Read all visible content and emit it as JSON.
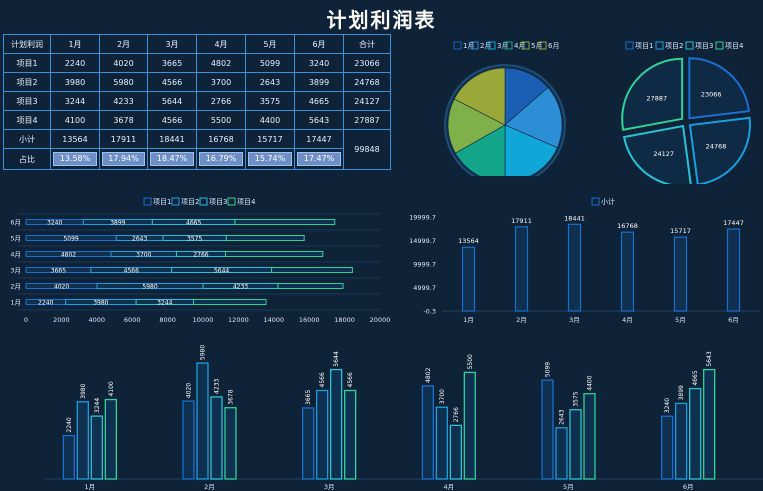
{
  "title": "计划利润表",
  "table": {
    "headers": [
      "计划利润",
      "1月",
      "2月",
      "3月",
      "4月",
      "5月",
      "6月",
      "合计"
    ],
    "rows": [
      {
        "label": "项目1",
        "values": [
          2240,
          4020,
          3665,
          4802,
          5099,
          3240
        ],
        "total": 23066
      },
      {
        "label": "项目2",
        "values": [
          3980,
          5980,
          4566,
          3700,
          2643,
          3899
        ],
        "total": 24768
      },
      {
        "label": "项目3",
        "values": [
          3244,
          4233,
          5644,
          2766,
          3575,
          4665
        ],
        "total": 24127
      },
      {
        "label": "项目4",
        "values": [
          4100,
          3678,
          4566,
          5500,
          4400,
          5643
        ],
        "total": 27887
      }
    ],
    "subtotal_label": "小计",
    "subtotal": [
      13564,
      17911,
      18441,
      16768,
      15717,
      17447
    ],
    "ratio_label": "占比",
    "ratio": [
      "13.58%",
      "17.94%",
      "18.47%",
      "16.79%",
      "15.74%",
      "17.47%"
    ],
    "grand_total": 99848
  },
  "colors": {
    "background": "#0e2238",
    "months": [
      "#1a5fb4",
      "#2c8fd6",
      "#10a7d8",
      "#12a58a",
      "#7fb04a",
      "#9aa83a"
    ],
    "projects": [
      "#1a6fd0",
      "#18a0e0",
      "#27c4d8",
      "#2fd29a"
    ]
  },
  "chart_data": [
    {
      "type": "pie",
      "legend": [
        "1月",
        "2月",
        "3月",
        "4月",
        "5月",
        "6月"
      ],
      "values": [
        13564,
        17911,
        18441,
        16768,
        15717,
        17447
      ],
      "legend_position": "top"
    },
    {
      "type": "pie",
      "legend": [
        "项目1",
        "项目2",
        "项目3",
        "项目4"
      ],
      "values": [
        23066,
        24768,
        24127,
        27887
      ],
      "labels": [
        "23066",
        "24768",
        "24127",
        "27887"
      ],
      "legend_position": "top"
    },
    {
      "type": "bar",
      "orientation": "horizontal",
      "stacked": true,
      "categories": [
        "1月",
        "2月",
        "3月",
        "4月",
        "5月",
        "6月"
      ],
      "series": [
        {
          "name": "项目1",
          "values": [
            2240,
            4020,
            3665,
            4802,
            5099,
            3240
          ]
        },
        {
          "name": "项目2",
          "values": [
            3980,
            5980,
            4566,
            3700,
            2643,
            3899
          ]
        },
        {
          "name": "项目3",
          "values": [
            3244,
            4233,
            5644,
            2766,
            3575,
            4665
          ]
        },
        {
          "name": "项目4",
          "values": [
            4100,
            3678,
            4566,
            5500,
            4400,
            5643
          ]
        }
      ],
      "xlim": [
        0,
        20000
      ],
      "xticks": [
        "0",
        "2000",
        "4000",
        "6000",
        "8000",
        "10000",
        "12000",
        "14000",
        "16000",
        "18000",
        "20000"
      ],
      "legend_position": "top"
    },
    {
      "type": "bar",
      "categories": [
        "1月",
        "2月",
        "3月",
        "4月",
        "5月",
        "6月"
      ],
      "series": [
        {
          "name": "小计",
          "values": [
            13564,
            17911,
            18441,
            16768,
            15717,
            17447
          ]
        }
      ],
      "ylim": [
        -0.3,
        19999.7
      ],
      "yticks": [
        "19999.7",
        "14999.7",
        "9999.7",
        "4999.7",
        "-0.3"
      ],
      "legend_position": "top"
    },
    {
      "type": "bar",
      "categories": [
        "1月",
        "2月",
        "3月",
        "4月",
        "5月",
        "6月"
      ],
      "series": [
        {
          "name": "项目1",
          "values": [
            2240,
            4020,
            3665,
            4802,
            5099,
            3240
          ]
        },
        {
          "name": "项目2",
          "values": [
            3980,
            5980,
            4566,
            3700,
            2643,
            3899
          ]
        },
        {
          "name": "项目3",
          "values": [
            3244,
            4233,
            5644,
            2766,
            3575,
            4665
          ]
        },
        {
          "name": "项目4",
          "values": [
            4100,
            3678,
            4566,
            5500,
            4400,
            5643
          ]
        }
      ],
      "ylim": [
        0,
        6500
      ]
    }
  ]
}
